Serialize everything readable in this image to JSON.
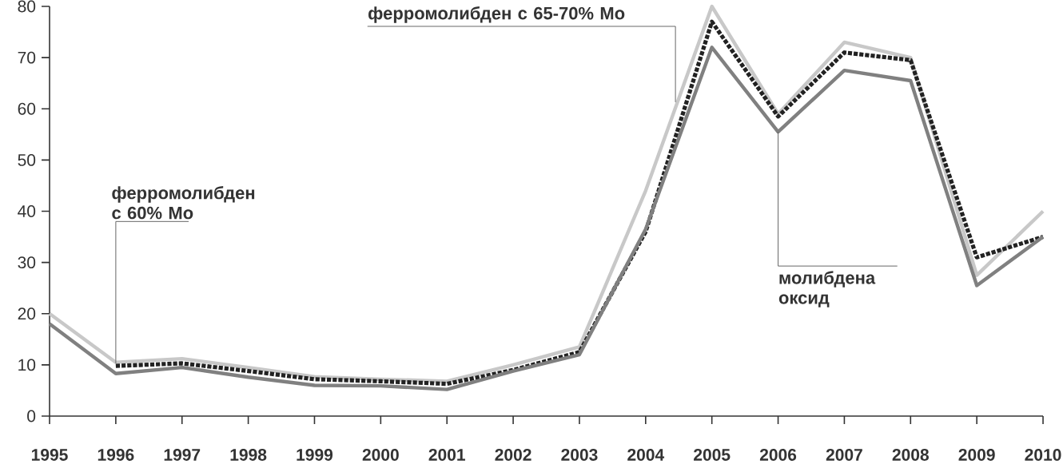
{
  "chart_data": {
    "type": "line",
    "x": [
      1995,
      1996,
      1997,
      1998,
      1999,
      2000,
      2001,
      2002,
      2003,
      2004,
      2005,
      2006,
      2007,
      2008,
      2009,
      2010
    ],
    "xlim": [
      1995,
      2010
    ],
    "xticks": [
      1995,
      1996,
      1997,
      1998,
      1999,
      2000,
      2001,
      2002,
      2003,
      2004,
      2005,
      2006,
      2007,
      2008,
      2009,
      2010
    ],
    "ylim": [
      0,
      80
    ],
    "yticks": [
      0,
      10,
      20,
      30,
      40,
      50,
      60,
      70,
      80
    ],
    "grid": false,
    "legend": false,
    "annotations": [
      {
        "text": "ферромолибден с 65-70% Mo",
        "x": 2004.45,
        "y": 61.3
      },
      {
        "text": "ферромолибден с 60% Mo",
        "x": 1996,
        "y": 10.3
      },
      {
        "text": "молибдена оксид",
        "x": 2006,
        "y": 55.5
      }
    ],
    "series": [
      {
        "color": "#c8c8c8",
        "line_style": "solid",
        "values": [
          20,
          10.5,
          11.2,
          9.5,
          7.7,
          7.2,
          6.8,
          10,
          13.5,
          44,
          80,
          59,
          73,
          70,
          27.5,
          40
        ]
      },
      {
        "color": "#222222",
        "line_style": "dotted",
        "values": [
          null,
          9.8,
          10.3,
          8.8,
          7.2,
          6.8,
          6.3,
          9,
          12.5,
          36,
          77,
          58.5,
          71,
          69.5,
          31,
          35
        ]
      },
      {
        "color": "#808080",
        "line_style": "solid",
        "values": [
          18,
          8.3,
          9.5,
          7.6,
          6,
          5.9,
          5.2,
          8.8,
          12,
          36.5,
          72,
          55.5,
          67.5,
          65.5,
          25.5,
          35
        ]
      }
    ]
  }
}
